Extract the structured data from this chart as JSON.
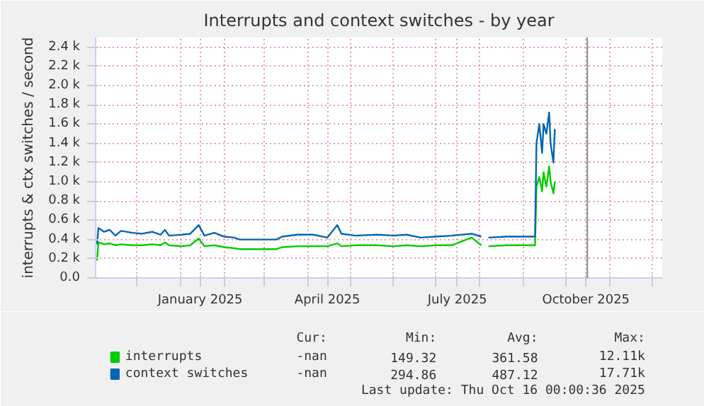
{
  "chart_data": {
    "type": "line",
    "title": "Interrupts and context switches - by year",
    "ylabel": "interrupts & ctx switches / second",
    "x": [
      "2024-11-03",
      "2024-11-04",
      "2024-11-08",
      "2024-11-12",
      "2024-11-16",
      "2024-11-20",
      "2024-11-28",
      "2024-12-05",
      "2024-12-12",
      "2024-12-18",
      "2024-12-21",
      "2024-12-24",
      "2025-01-02",
      "2025-01-08",
      "2025-01-14",
      "2025-01-18",
      "2025-01-25",
      "2025-02-01",
      "2025-02-08",
      "2025-02-12",
      "2025-03-01",
      "2025-03-10",
      "2025-03-14",
      "2025-03-25",
      "2025-04-05",
      "2025-04-15",
      "2025-04-22",
      "2025-04-25",
      "2025-05-05",
      "2025-05-20",
      "2025-06-01",
      "2025-06-10",
      "2025-06-20",
      "2025-07-01",
      "2025-07-12",
      "2025-07-26",
      "2025-08-02",
      "2025-08-04",
      "2025-08-07",
      "2025-08-20",
      "2025-09-01",
      "2025-09-09",
      "2025-09-10",
      "2025-09-12",
      "2025-09-14",
      "2025-09-15",
      "2025-09-17",
      "2025-09-19",
      "2025-09-20",
      "2025-09-22",
      "2025-09-23"
    ],
    "series": [
      {
        "name": "interrupts",
        "color": "#00cc00",
        "values": [
          180,
          370,
          350,
          360,
          340,
          350,
          340,
          340,
          350,
          340,
          370,
          340,
          330,
          340,
          410,
          330,
          340,
          320,
          310,
          300,
          300,
          300,
          320,
          330,
          330,
          330,
          360,
          330,
          340,
          340,
          330,
          340,
          330,
          340,
          340,
          420,
          340,
          null,
          330,
          340,
          340,
          340,
          950,
          1050,
          900,
          1100,
          950,
          1160,
          1000,
          880,
          1000
        ]
      },
      {
        "name": "context switches",
        "color": "#0066b3",
        "values": [
          350,
          520,
          480,
          500,
          440,
          490,
          470,
          460,
          480,
          450,
          500,
          440,
          450,
          460,
          550,
          440,
          470,
          430,
          420,
          400,
          400,
          400,
          430,
          450,
          450,
          420,
          550,
          460,
          440,
          450,
          440,
          450,
          420,
          430,
          440,
          460,
          430,
          null,
          420,
          430,
          430,
          430,
          1400,
          1600,
          1300,
          1600,
          1500,
          1720,
          1400,
          1200,
          1550
        ]
      }
    ],
    "xlim": [
      "2024-11-02",
      "2025-12-08"
    ],
    "xticks": [
      {
        "value": "2024-12-01",
        "label": null
      },
      {
        "value": "2025-01-01",
        "label": null
      },
      {
        "value": "2025-01-15",
        "label": "January 2025"
      },
      {
        "value": "2025-02-01",
        "label": null
      },
      {
        "value": "2025-03-01",
        "label": null
      },
      {
        "value": "2025-04-01",
        "label": null
      },
      {
        "value": "2025-04-15",
        "label": "April 2025"
      },
      {
        "value": "2025-05-01",
        "label": null
      },
      {
        "value": "2025-06-01",
        "label": null
      },
      {
        "value": "2025-07-01",
        "label": null
      },
      {
        "value": "2025-07-16",
        "label": "July 2025"
      },
      {
        "value": "2025-08-01",
        "label": null
      },
      {
        "value": "2025-09-01",
        "label": null
      },
      {
        "value": "2025-10-01",
        "label": null
      },
      {
        "value": "2025-10-15",
        "label": "October 2025"
      },
      {
        "value": "2025-11-01",
        "label": null
      },
      {
        "value": "2025-12-01",
        "label": null
      }
    ],
    "ylim": [
      0,
      2500
    ],
    "yticks": [
      {
        "value": 0,
        "label": "0.0"
      },
      {
        "value": 200,
        "label": "0.2 k"
      },
      {
        "value": 400,
        "label": "0.4 k"
      },
      {
        "value": 600,
        "label": "0.6 k"
      },
      {
        "value": 800,
        "label": "0.8 k"
      },
      {
        "value": 1000,
        "label": "1.0 k"
      },
      {
        "value": 1200,
        "label": "1.2 k"
      },
      {
        "value": 1400,
        "label": "1.4 k"
      },
      {
        "value": 1600,
        "label": "1.6 k"
      },
      {
        "value": 1800,
        "label": "1.8 k"
      },
      {
        "value": 2000,
        "label": "2.0 k"
      },
      {
        "value": 2200,
        "label": "2.2 k"
      },
      {
        "value": 2400,
        "label": "2.4 k"
      }
    ],
    "ref_lines": [
      {
        "axis": "x",
        "value": "2025-10-16",
        "color": "#888888"
      }
    ],
    "grid": true,
    "legend": "bottom left",
    "annotations": [
      "Cur:",
      "Min:",
      "Avg:",
      "Max:",
      "-nan",
      "149.32",
      "361.58",
      "12.11k",
      "-nan",
      "294.86",
      "487.12",
      "17.71k",
      "Last update: Thu Oct 16 00:00:36 2025"
    ]
  }
}
